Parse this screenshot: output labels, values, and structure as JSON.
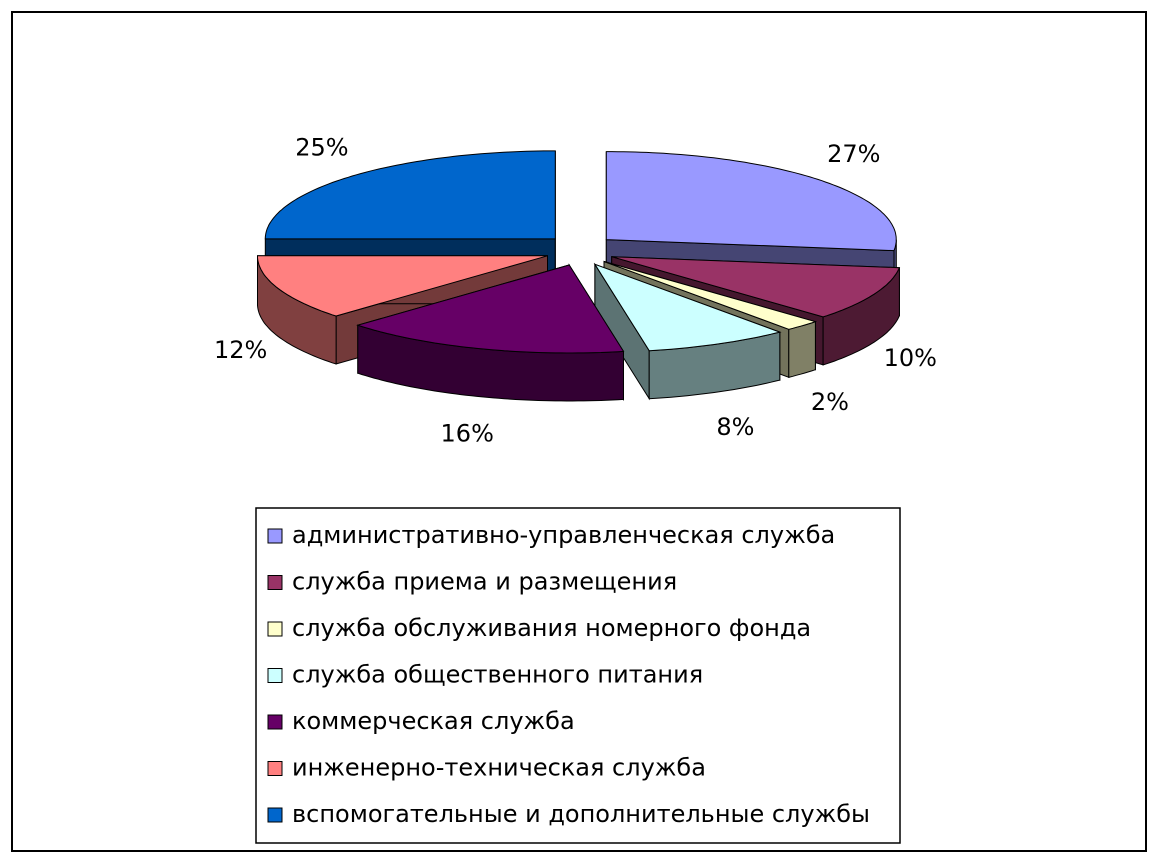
{
  "chart_data": {
    "type": "pie",
    "categories": [
      "административно-управленческая служба",
      "служба приема и размещения",
      "служба обслуживания номерного фонда",
      "служба общественного питания",
      "коммерческая служба",
      "инженерно-техническая служба",
      "вспомогательные и дополнительные службы"
    ],
    "values": [
      27,
      10,
      2,
      8,
      16,
      12,
      25
    ],
    "value_labels": [
      "27%",
      "10%",
      "2%",
      "8%",
      "16%",
      "12%",
      "25%"
    ],
    "colors": [
      "#9999ff",
      "#993366",
      "#ffffcc",
      "#ccffff",
      "#660066",
      "#ff8080",
      "#0066cc"
    ],
    "legend": "bottom"
  }
}
